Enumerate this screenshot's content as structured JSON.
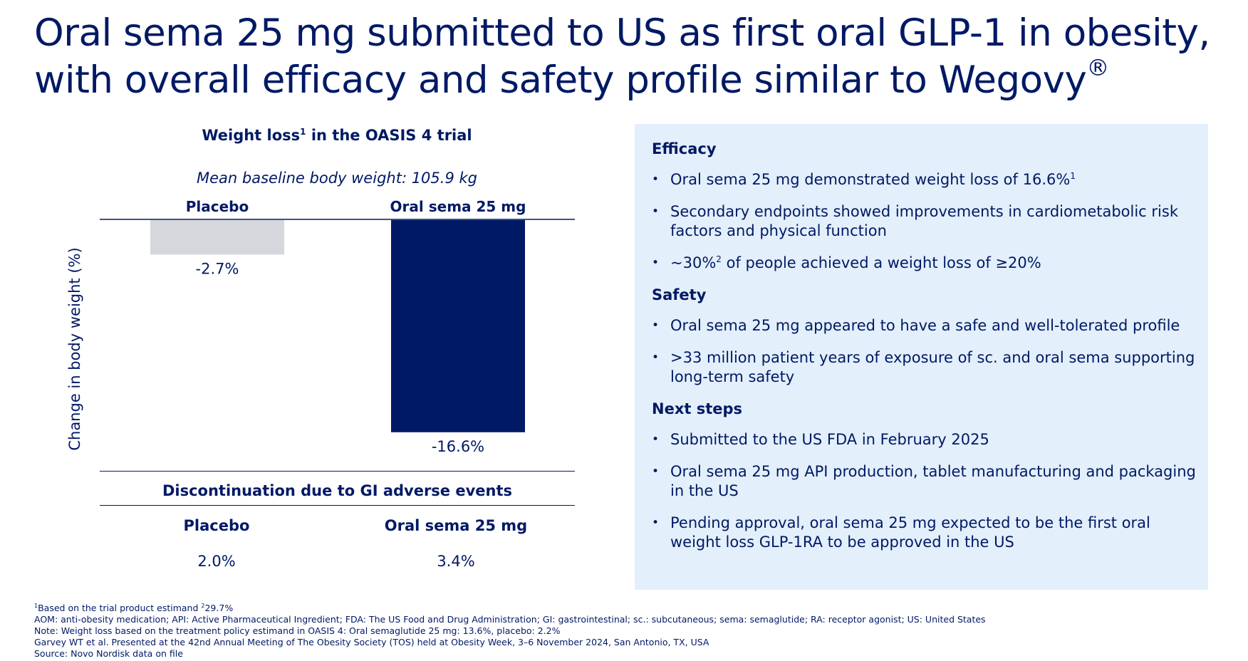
{
  "title": {
    "line1": "Oral sema 25 mg submitted to US as first oral GLP-1 in obesity,",
    "line2": "with overall efficacy and safety profile similar to Wegovy",
    "reg_mark": "®"
  },
  "chart_data": {
    "type": "bar",
    "title": "Weight loss",
    "title_sup": "1",
    "title_suffix": " in the OASIS 4 trial",
    "subtitle": "Mean baseline body weight: 105.9 kg",
    "categories": [
      "Placebo",
      "Oral sema 25 mg"
    ],
    "values": [
      -2.7,
      -16.6
    ],
    "value_labels": [
      "-2.7%",
      "-16.6%"
    ],
    "ylabel": "Change in body weight (%)",
    "xlabel": "",
    "ylim": [
      -17,
      0
    ],
    "colors": [
      "#d6d7dc",
      "#001965"
    ],
    "grid": false,
    "legend": "none"
  },
  "discontinuation": {
    "title": "Discontinuation due to GI adverse events",
    "columns": [
      {
        "label": "Placebo",
        "value": "2.0%"
      },
      {
        "label": "Oral sema 25 mg",
        "value": "3.4%"
      }
    ]
  },
  "panel": {
    "efficacy": {
      "heading": "Efficacy",
      "b1": {
        "text": "Oral sema 25 mg demonstrated weight loss of 16.6%",
        "sup": "1"
      },
      "b2": "Secondary endpoints showed improvements in cardiometabolic risk factors and physical function",
      "b3": {
        "pre": "~30%",
        "sup": "2",
        "post": " of people achieved a weight loss of ≥20%"
      }
    },
    "safety": {
      "heading": "Safety",
      "b1": "Oral sema 25 mg appeared to have a safe and well-tolerated profile",
      "b2": ">33 million patient years of exposure of sc. and oral sema supporting long-term safety"
    },
    "next_steps": {
      "heading": "Next steps",
      "b1": "Submitted to the US FDA in February 2025",
      "b2": "Oral sema 25 mg API production, tablet manufacturing and packaging in the US",
      "b3": "Pending approval, oral sema 25 mg expected to be the first oral weight loss GLP-1RA to be approved in the US"
    }
  },
  "footnotes": {
    "f1": {
      "sup1": "1",
      "text1": "Based on the trial product estimand ",
      "sup2": "2",
      "text2": "29.7%"
    },
    "f2": "AOM: anti-obesity medication; API: Active Pharmaceutical Ingredient; FDA: The US Food and Drug Administration; GI: gastrointestinal; sc.: subcutaneous; sema: semaglutide; RA: receptor agonist; US: United States",
    "f3": "Note: Weight loss based on the treatment policy estimand in OASIS 4: Oral semaglutide 25 mg: 13.6%, placebo: 2.2%",
    "f4": "Garvey WT et al. Presented at the 42nd Annual Meeting of The Obesity Society (TOS) held at Obesity Week, 3–6 November 2024, San Antonio, TX, USA",
    "f5": "Source: Novo Nordisk data on file"
  }
}
